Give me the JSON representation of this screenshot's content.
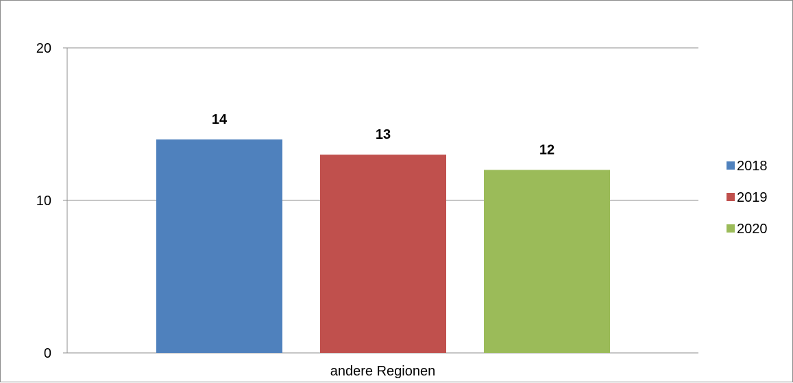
{
  "chart_data": {
    "type": "bar",
    "categories": [
      "andere Regionen"
    ],
    "series": [
      {
        "name": "2018",
        "values": [
          14
        ],
        "color": "#4f81bd"
      },
      {
        "name": "2019",
        "values": [
          13
        ],
        "color": "#c0504d"
      },
      {
        "name": "2020",
        "values": [
          12
        ],
        "color": "#9bbb59"
      }
    ],
    "data_labels": [
      "14",
      "13",
      "12"
    ],
    "y_ticks": [
      "0",
      "10",
      "20"
    ],
    "ylim": [
      0,
      20
    ],
    "grid": true,
    "legend": "right",
    "title": "",
    "xlabel": "",
    "ylabel": ""
  }
}
